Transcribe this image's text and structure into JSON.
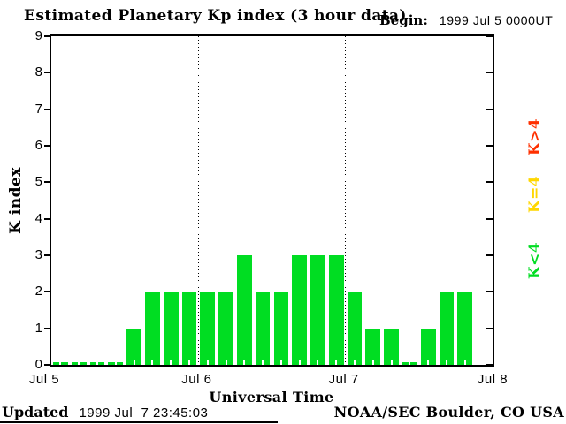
{
  "title": "Estimated Planetary Kp index (3 hour data)",
  "begin": {
    "label": "Begin:",
    "value": "1999 Jul 5 0000UT"
  },
  "axes": {
    "ylabel": "K index",
    "xlabel": "Universal Time",
    "yticks": [
      0,
      1,
      2,
      3,
      4,
      5,
      6,
      7,
      8,
      9
    ],
    "xtick_labels": [
      "Jul 5",
      "Jul 6",
      "Jul 7",
      "Jul 8"
    ]
  },
  "legend": [
    {
      "label": "K>4",
      "color": "#ff3000"
    },
    {
      "label": "K=4",
      "color": "#ffd700"
    },
    {
      "label": "K<4",
      "color": "#00dd22"
    }
  ],
  "footer": {
    "updated_label": "Updated",
    "updated_value": "1999 Jul  7 23:45:03",
    "credit": "NOAA/SEC Boulder, CO USA"
  },
  "colors": {
    "background": "#ffffff",
    "frame": "#000000",
    "bar_green": "#00dd22",
    "legend_red": "#ff3000",
    "legend_yellow": "#ffd700",
    "legend_green": "#00dd22"
  },
  "chart_data": {
    "type": "bar",
    "title": "Estimated Planetary Kp index (3 hour data)",
    "xlabel": "Universal Time",
    "ylabel": "K index",
    "ylim": [
      0,
      9
    ],
    "grid": "dotted vertical lines at day boundaries",
    "legend_position": "right, rotated 90deg",
    "begin": "1999 Jul 5 0000UT",
    "bar_interval_hours": 3,
    "day_labels": [
      "Jul 5",
      "Jul 6",
      "Jul 7",
      "Jul 8"
    ],
    "values": [
      0,
      0,
      0,
      0,
      1,
      2,
      2,
      2,
      2,
      2,
      3,
      2,
      2,
      3,
      3,
      3,
      2,
      1,
      1,
      0,
      1,
      2,
      2,
      null
    ],
    "bar_color": "#00dd22",
    "note": "last 3-hour bin (Jul 7 2100-2400UT) has no bar"
  }
}
